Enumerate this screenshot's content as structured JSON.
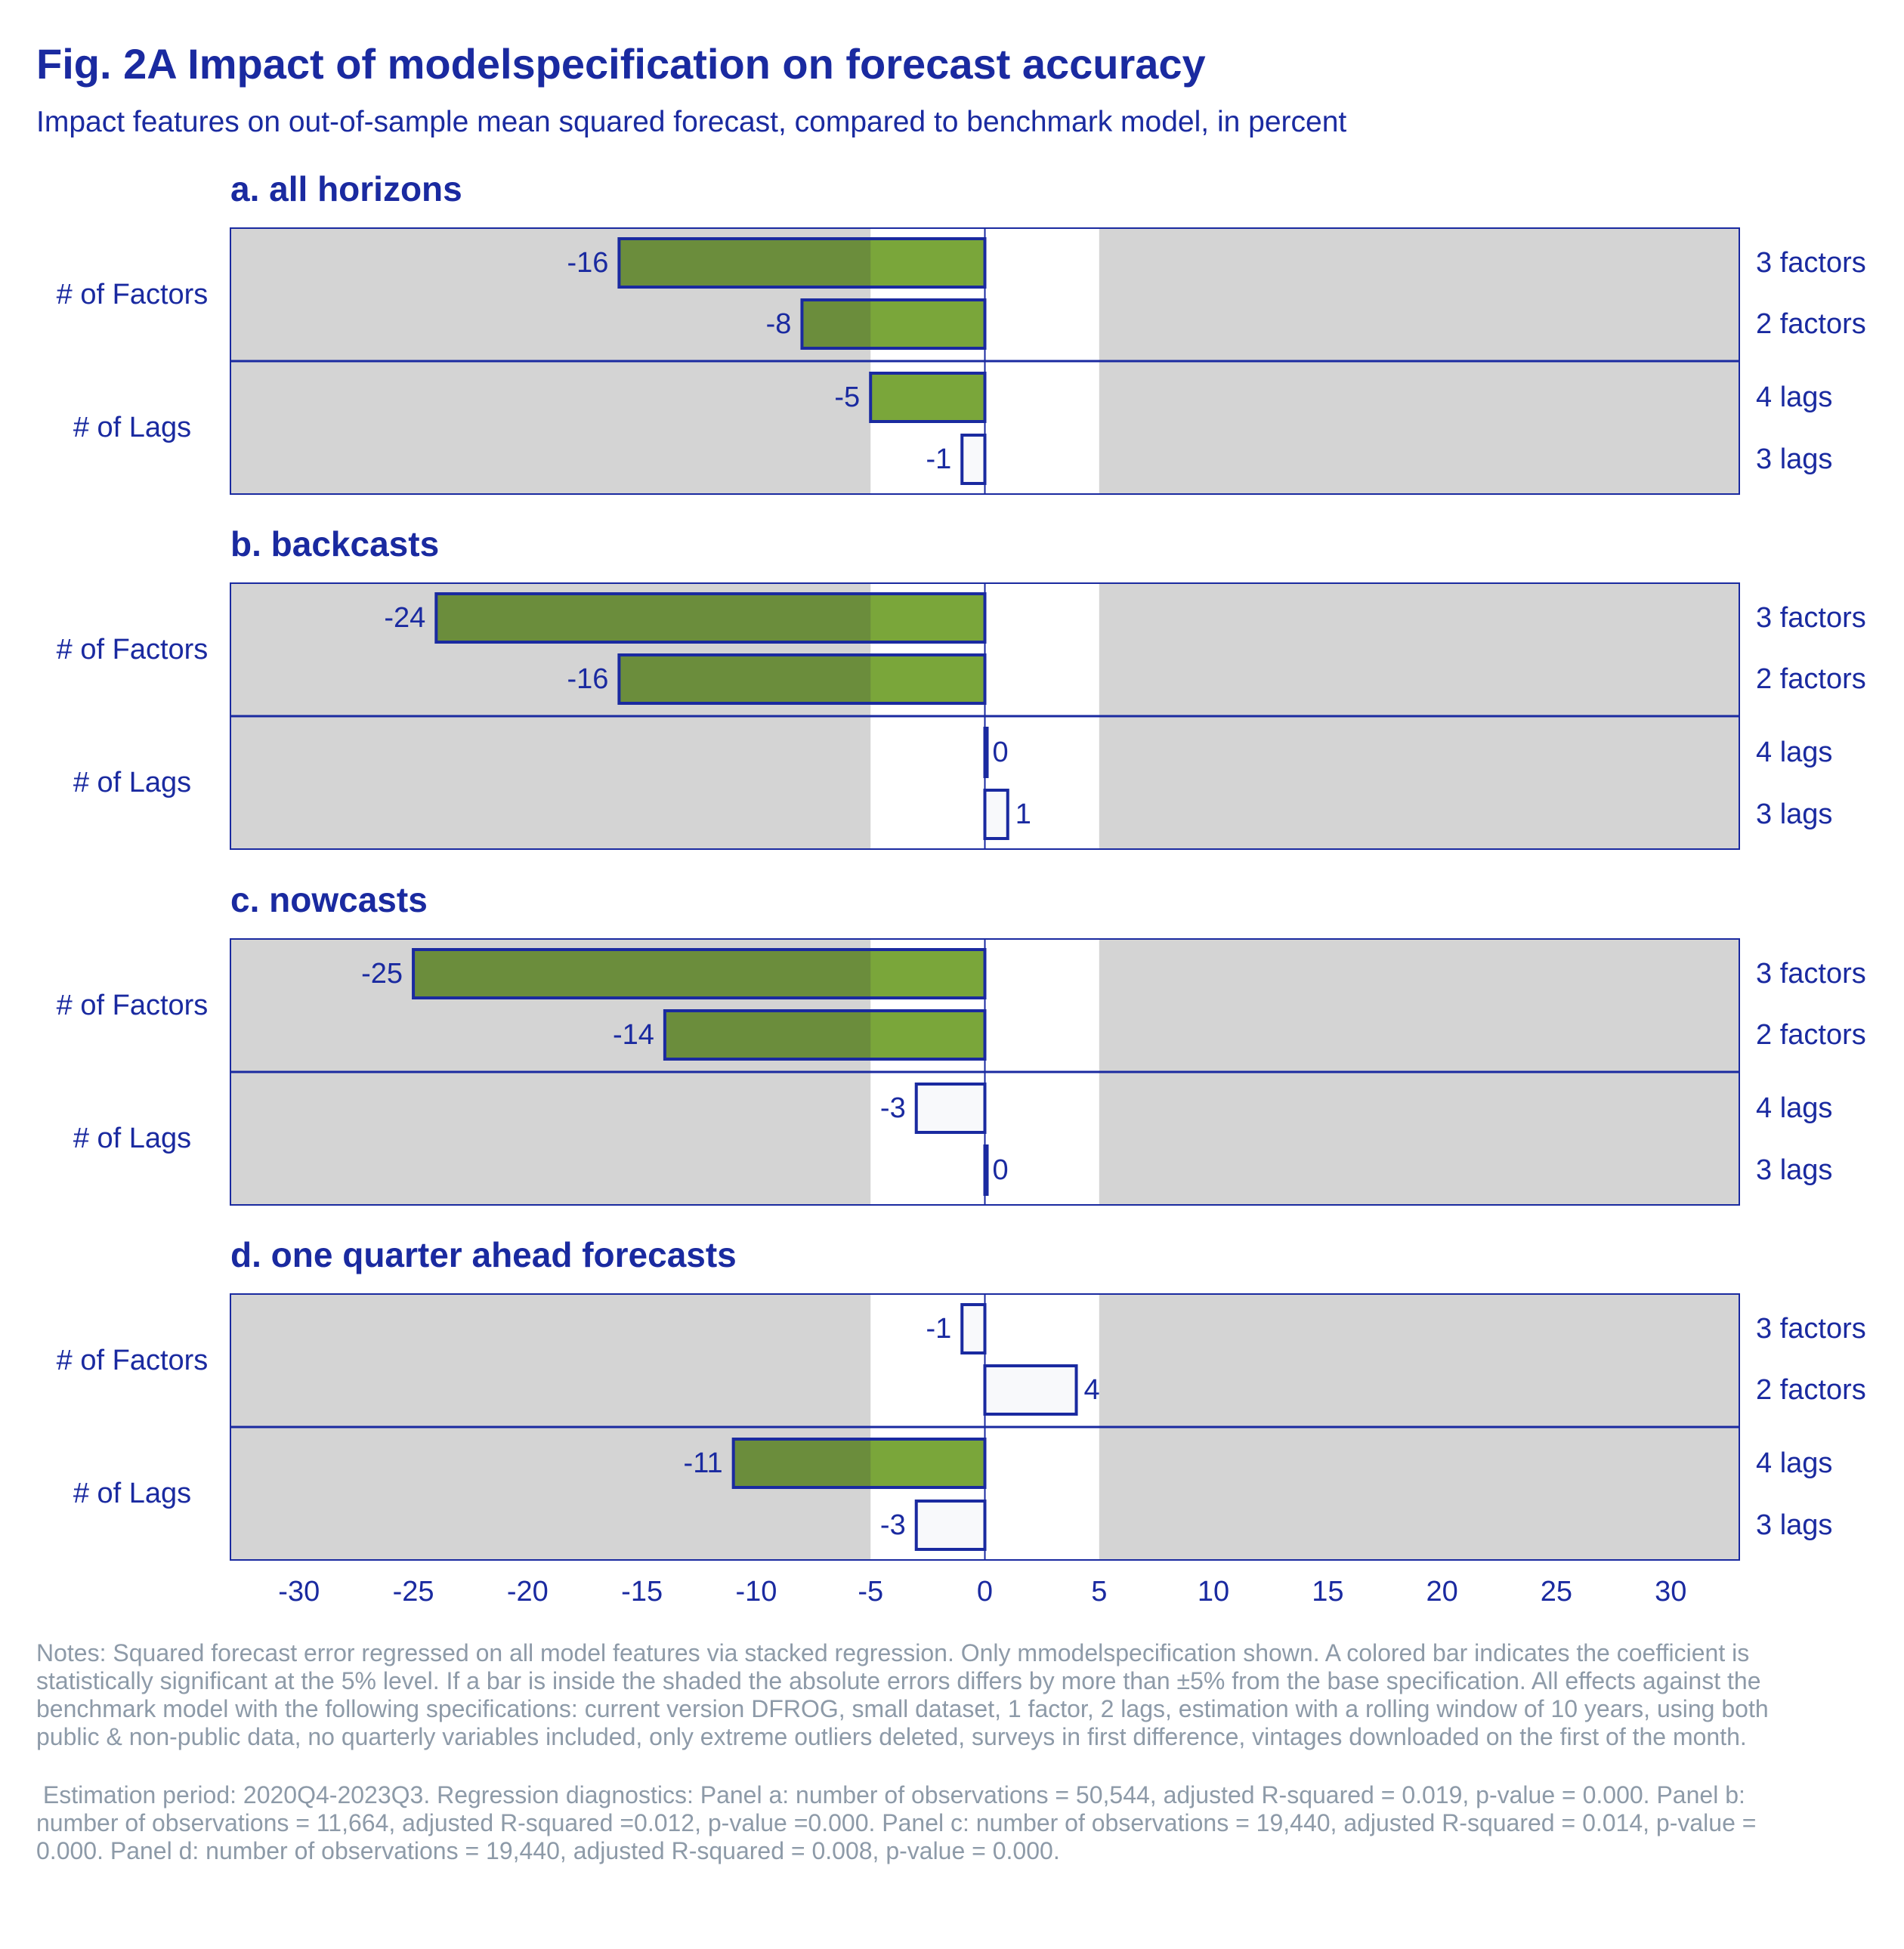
{
  "title": "Fig. 2A Impact of modelspecification on forecast accuracy",
  "subtitle": "Impact features on out-of-sample mean squared forecast, compared to benchmark model, in percent",
  "colors": {
    "text": "#1a2aa0",
    "axis": "#1a2aa0",
    "shade": "#d4d4d4",
    "significant_bar": "#7aa63a",
    "significant_bar_shaded": "#6b8d3c",
    "insignificant_bar": "#f8f9fb",
    "notes": "#8d9aa8"
  },
  "chart_data": {
    "type": "bar",
    "orientation": "horizontal",
    "xlim": [
      -33,
      33
    ],
    "xticks": [
      -30,
      -25,
      -20,
      -15,
      -10,
      -5,
      0,
      5,
      10,
      15,
      20,
      25,
      30
    ],
    "shaded_outside": [
      -5,
      5
    ],
    "groups": [
      "# of Factors",
      "# of Lags"
    ],
    "panels": [
      {
        "title": "a. all horizons",
        "bars": [
          {
            "label": "3 factors",
            "group": "# of Factors",
            "value": -16,
            "significant": true
          },
          {
            "label": "2 factors",
            "group": "# of Factors",
            "value": -8,
            "significant": true
          },
          {
            "label": "4 lags",
            "group": "# of Lags",
            "value": -5,
            "significant": true
          },
          {
            "label": "3 lags",
            "group": "# of Lags",
            "value": -1,
            "significant": false
          }
        ]
      },
      {
        "title": "b. backcasts",
        "bars": [
          {
            "label": "3 factors",
            "group": "# of Factors",
            "value": -24,
            "significant": true
          },
          {
            "label": "2 factors",
            "group": "# of Factors",
            "value": -16,
            "significant": true
          },
          {
            "label": "4 lags",
            "group": "# of Lags",
            "value": 0,
            "significant": false
          },
          {
            "label": "3 lags",
            "group": "# of Lags",
            "value": 1,
            "significant": false
          }
        ]
      },
      {
        "title": "c. nowcasts",
        "bars": [
          {
            "label": "3 factors",
            "group": "# of Factors",
            "value": -25,
            "significant": true
          },
          {
            "label": "2 factors",
            "group": "# of Factors",
            "value": -14,
            "significant": true
          },
          {
            "label": "4 lags",
            "group": "# of Lags",
            "value": -3,
            "significant": false
          },
          {
            "label": "3 lags",
            "group": "# of Lags",
            "value": 0,
            "significant": false
          }
        ]
      },
      {
        "title": "d. one quarter ahead forecasts",
        "bars": [
          {
            "label": "3 factors",
            "group": "# of Factors",
            "value": -1,
            "significant": false
          },
          {
            "label": "2 factors",
            "group": "# of Factors",
            "value": 4,
            "significant": false
          },
          {
            "label": "4 lags",
            "group": "# of Lags",
            "value": -11,
            "significant": true
          },
          {
            "label": "3 lags",
            "group": "# of Lags",
            "value": -3,
            "significant": false
          }
        ]
      }
    ]
  },
  "notes": "Notes: Squared forecast error regressed on all model features via stacked regression. Only mmodelspecification shown. A colored bar indicates the coefficient is statistically significant at the 5% level. If a bar is inside the shaded the absolute errors differs by more than ±5% from the base specification. All effects against the benchmark model with the following specifications: current version DFROG, small dataset, 1 factor, 2 lags, estimation with a rolling window of 10 years, using both public & non-public data, no quarterly variables included, only extreme outliers deleted, surveys in first difference, vintages downloaded on the first of the month.",
  "diagnostics": " Estimation period: 2020Q4-2023Q3. Regression diagnostics: Panel a: number of observations = 50,544, adjusted R-squared = 0.019, p-value = 0.000. Panel b: number of observations = 11,664, adjusted R-squared =0.012, p-value =0.000. Panel c: number of observations = 19,440, adjusted R-squared = 0.014, p-value = 0.000. Panel d: number of observations = 19,440, adjusted R-squared = 0.008, p-value = 0.000."
}
